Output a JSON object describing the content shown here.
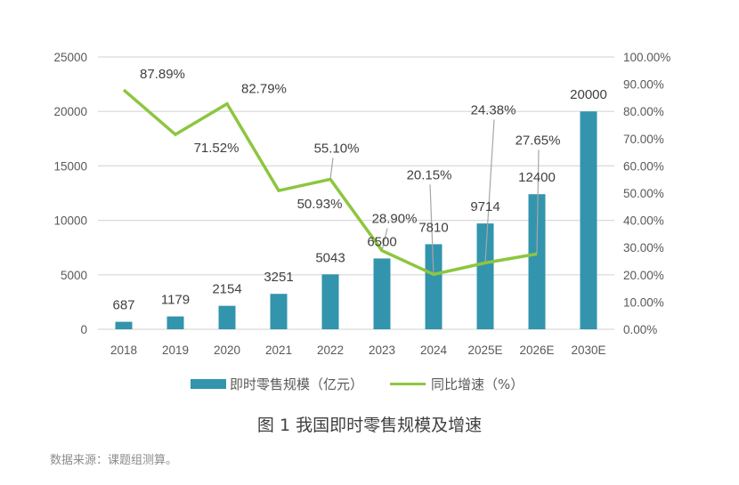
{
  "chart_data": {
    "type": "bar+line",
    "title": "图 1 我国即时零售规模及增速",
    "categories": [
      "2018",
      "2019",
      "2020",
      "2021",
      "2022",
      "2023",
      "2024",
      "2025E",
      "2026E",
      "2030E"
    ],
    "series": [
      {
        "name": "即时零售规模（亿元）",
        "type": "bar",
        "axis": "left",
        "color": "#3394AD",
        "values": [
          687,
          1179,
          2154,
          3251,
          5043,
          6500,
          7810,
          9714,
          12400,
          20000
        ],
        "labels": [
          "687",
          "1179",
          "2154",
          "3251",
          "5043",
          "6500",
          "7810",
          "9714",
          "12400",
          "20000"
        ]
      },
      {
        "name": "同比增速（%）",
        "type": "line",
        "axis": "right",
        "color": "#8DC63F",
        "values": [
          87.89,
          71.52,
          82.79,
          50.93,
          55.1,
          28.9,
          20.15,
          24.38,
          27.65,
          null
        ],
        "labels": [
          "87.89%",
          "71.52%",
          "82.79%",
          "50.93%",
          "55.10%",
          "28.90%",
          "20.15%",
          "24.38%",
          "27.65%",
          null
        ]
      }
    ],
    "left_axis": {
      "ylim": [
        0,
        25000
      ],
      "ticks": [
        "0",
        "5000",
        "10000",
        "15000",
        "20000",
        "25000"
      ]
    },
    "right_axis": {
      "ylim": [
        0,
        100
      ],
      "ticks": [
        "0.00%",
        "10.00%",
        "20.00%",
        "30.00%",
        "40.00%",
        "50.00%",
        "60.00%",
        "70.00%",
        "80.00%",
        "90.00%",
        "100.00%"
      ]
    },
    "grid": true,
    "legend": "bottom"
  },
  "legend": {
    "bar": "即时零售规模（亿元）",
    "line": "同比增速（%）"
  },
  "caption": "图 1 我国即时零售规模及增速",
  "source": "数据来源：课题组测算。"
}
